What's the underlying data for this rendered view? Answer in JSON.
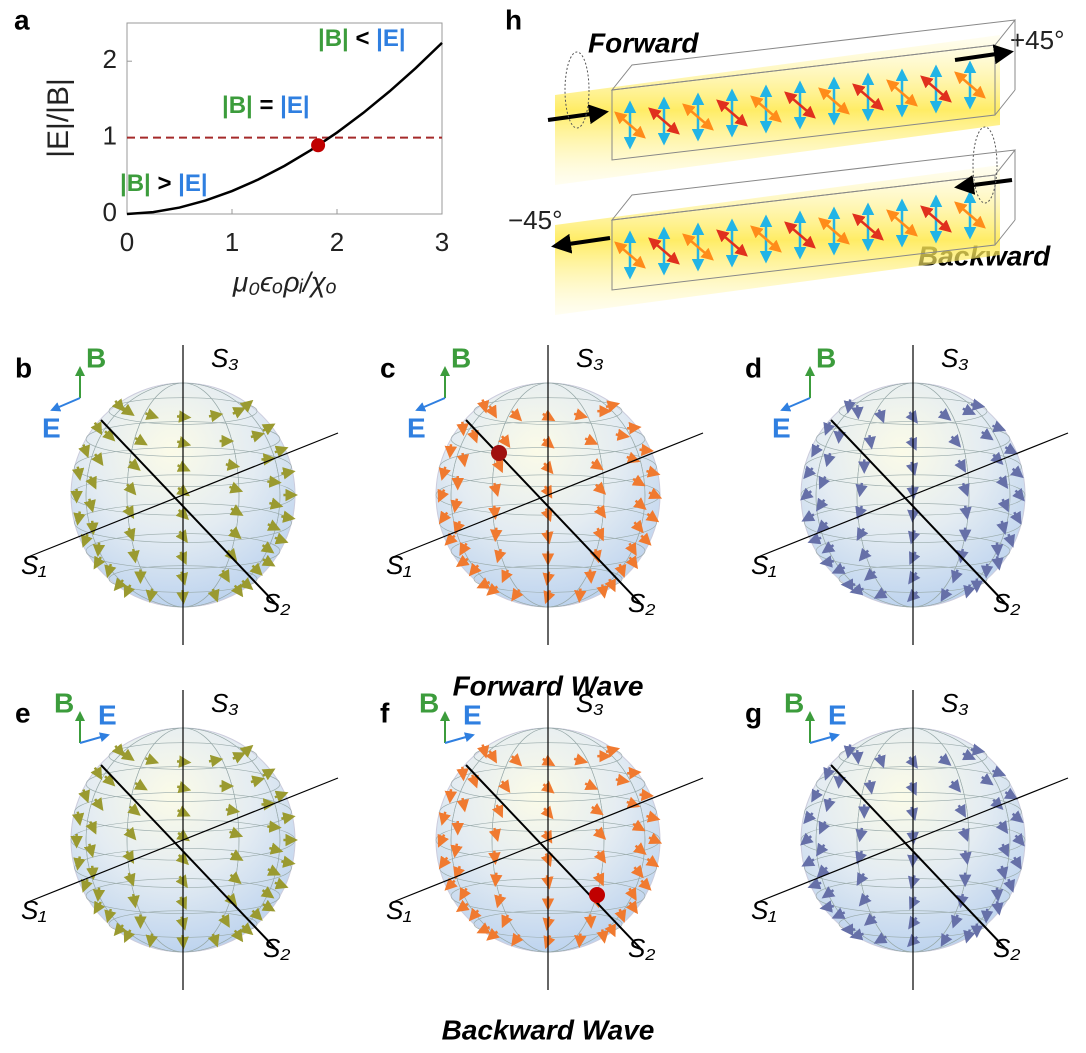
{
  "chart_data": {
    "type": "line",
    "panel_label": "a",
    "x_label": "μ₀ϵₒρᵢ/χₒ",
    "y_label": "|E|/|B|",
    "x": [
      0,
      0.25,
      0.5,
      0.75,
      1,
      1.25,
      1.5,
      1.75,
      2,
      2.25,
      2.5,
      2.75,
      3
    ],
    "series": [
      {
        "color": "#000000",
        "values": [
          0,
          0.024,
          0.084,
          0.177,
          0.3,
          0.451,
          0.63,
          0.835,
          1.066,
          1.323,
          1.605,
          1.91,
          2.24
        ]
      }
    ],
    "reference_line": {
      "y": 1,
      "color": "#a52a2a"
    },
    "marker": {
      "x": 1.82,
      "y": 0.9,
      "color": "#c00000"
    },
    "xlim": [
      0,
      3
    ],
    "ylim": [
      0,
      2.5
    ],
    "xticks": [
      0,
      1,
      2,
      3
    ],
    "yticks": [
      0,
      1,
      2
    ],
    "annotations": [
      {
        "parts": [
          {
            "text": "|B|",
            "color": "#3c9c3c"
          },
          {
            "text": "<",
            "color": "#000000"
          },
          {
            "text": "|E|",
            "color": "#2f7fe0"
          }
        ]
      },
      {
        "parts": [
          {
            "text": "|B|",
            "color": "#3c9c3c"
          },
          {
            "text": "=",
            "color": "#000000"
          },
          {
            "text": "|E|",
            "color": "#2f7fe0"
          }
        ]
      },
      {
        "parts": [
          {
            "text": "|B|",
            "color": "#3c9c3c"
          },
          {
            "text": ">",
            "color": "#000000"
          },
          {
            "text": "|E|",
            "color": "#2f7fe0"
          }
        ]
      }
    ]
  },
  "schematic": {
    "label": "h",
    "forward": "Forward",
    "backward": "Backward",
    "plus_angle": "+45°",
    "minus_angle": "−45°"
  },
  "spheres": [
    {
      "label": "b",
      "color": "#9a9a30",
      "B": "B",
      "E": "E",
      "axes": [
        "S₃",
        "S₁",
        "S₂"
      ]
    },
    {
      "label": "c",
      "color": "#f07a30",
      "B": "B",
      "E": "E",
      "axes": [
        "S₃",
        "S₁",
        "S₂"
      ]
    },
    {
      "label": "d",
      "color": "#6670a8",
      "B": "B",
      "E": "E",
      "axes": [
        "S₃",
        "S₁",
        "S₂"
      ]
    },
    {
      "label": "e",
      "color": "#9a9a30",
      "B": "B",
      "E": "E",
      "axes": [
        "S₃",
        "S₁",
        "S₂"
      ]
    },
    {
      "label": "f",
      "color": "#f07a30",
      "B": "B",
      "E": "E",
      "axes": [
        "S₃",
        "S₁",
        "S₂"
      ]
    },
    {
      "label": "g",
      "color": "#6670a8",
      "B": "B",
      "E": "E",
      "axes": [
        "S₃",
        "S₁",
        "S₂"
      ]
    }
  ],
  "captions": [
    "Forward Wave",
    "Backward Wave"
  ]
}
